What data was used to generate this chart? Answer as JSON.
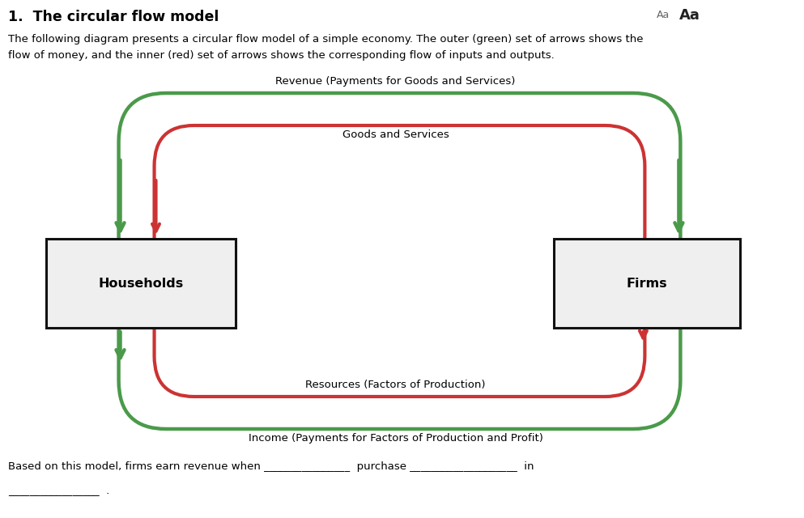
{
  "title": "1.  The circular flow model",
  "description_line1": "The following diagram presents a circular flow model of a simple economy. The outer (green) set of arrows shows the",
  "description_line2": "flow of money, and the inner (red) set of arrows shows the corresponding flow of inputs and outputs.",
  "households_label": "Households",
  "firms_label": "Firms",
  "top_green_label": "Revenue (Payments for Goods and Services)",
  "top_red_label": "Goods and Services",
  "bottom_red_label": "Resources (Factors of Production)",
  "bottom_green_label": "Income (Payments for Factors of Production and Profit)",
  "footer_text": "Based on this model, firms earn revenue when ________________  purchase ____________________  in",
  "footer_line2": "_________________  .",
  "green_color": "#4a9a4a",
  "red_color": "#cc3333",
  "box_facecolor": "#efefef",
  "box_edgecolor": "#111111",
  "background_color": "#ffffff",
  "lw_outer": 3.2,
  "lw_inner": 3.0
}
